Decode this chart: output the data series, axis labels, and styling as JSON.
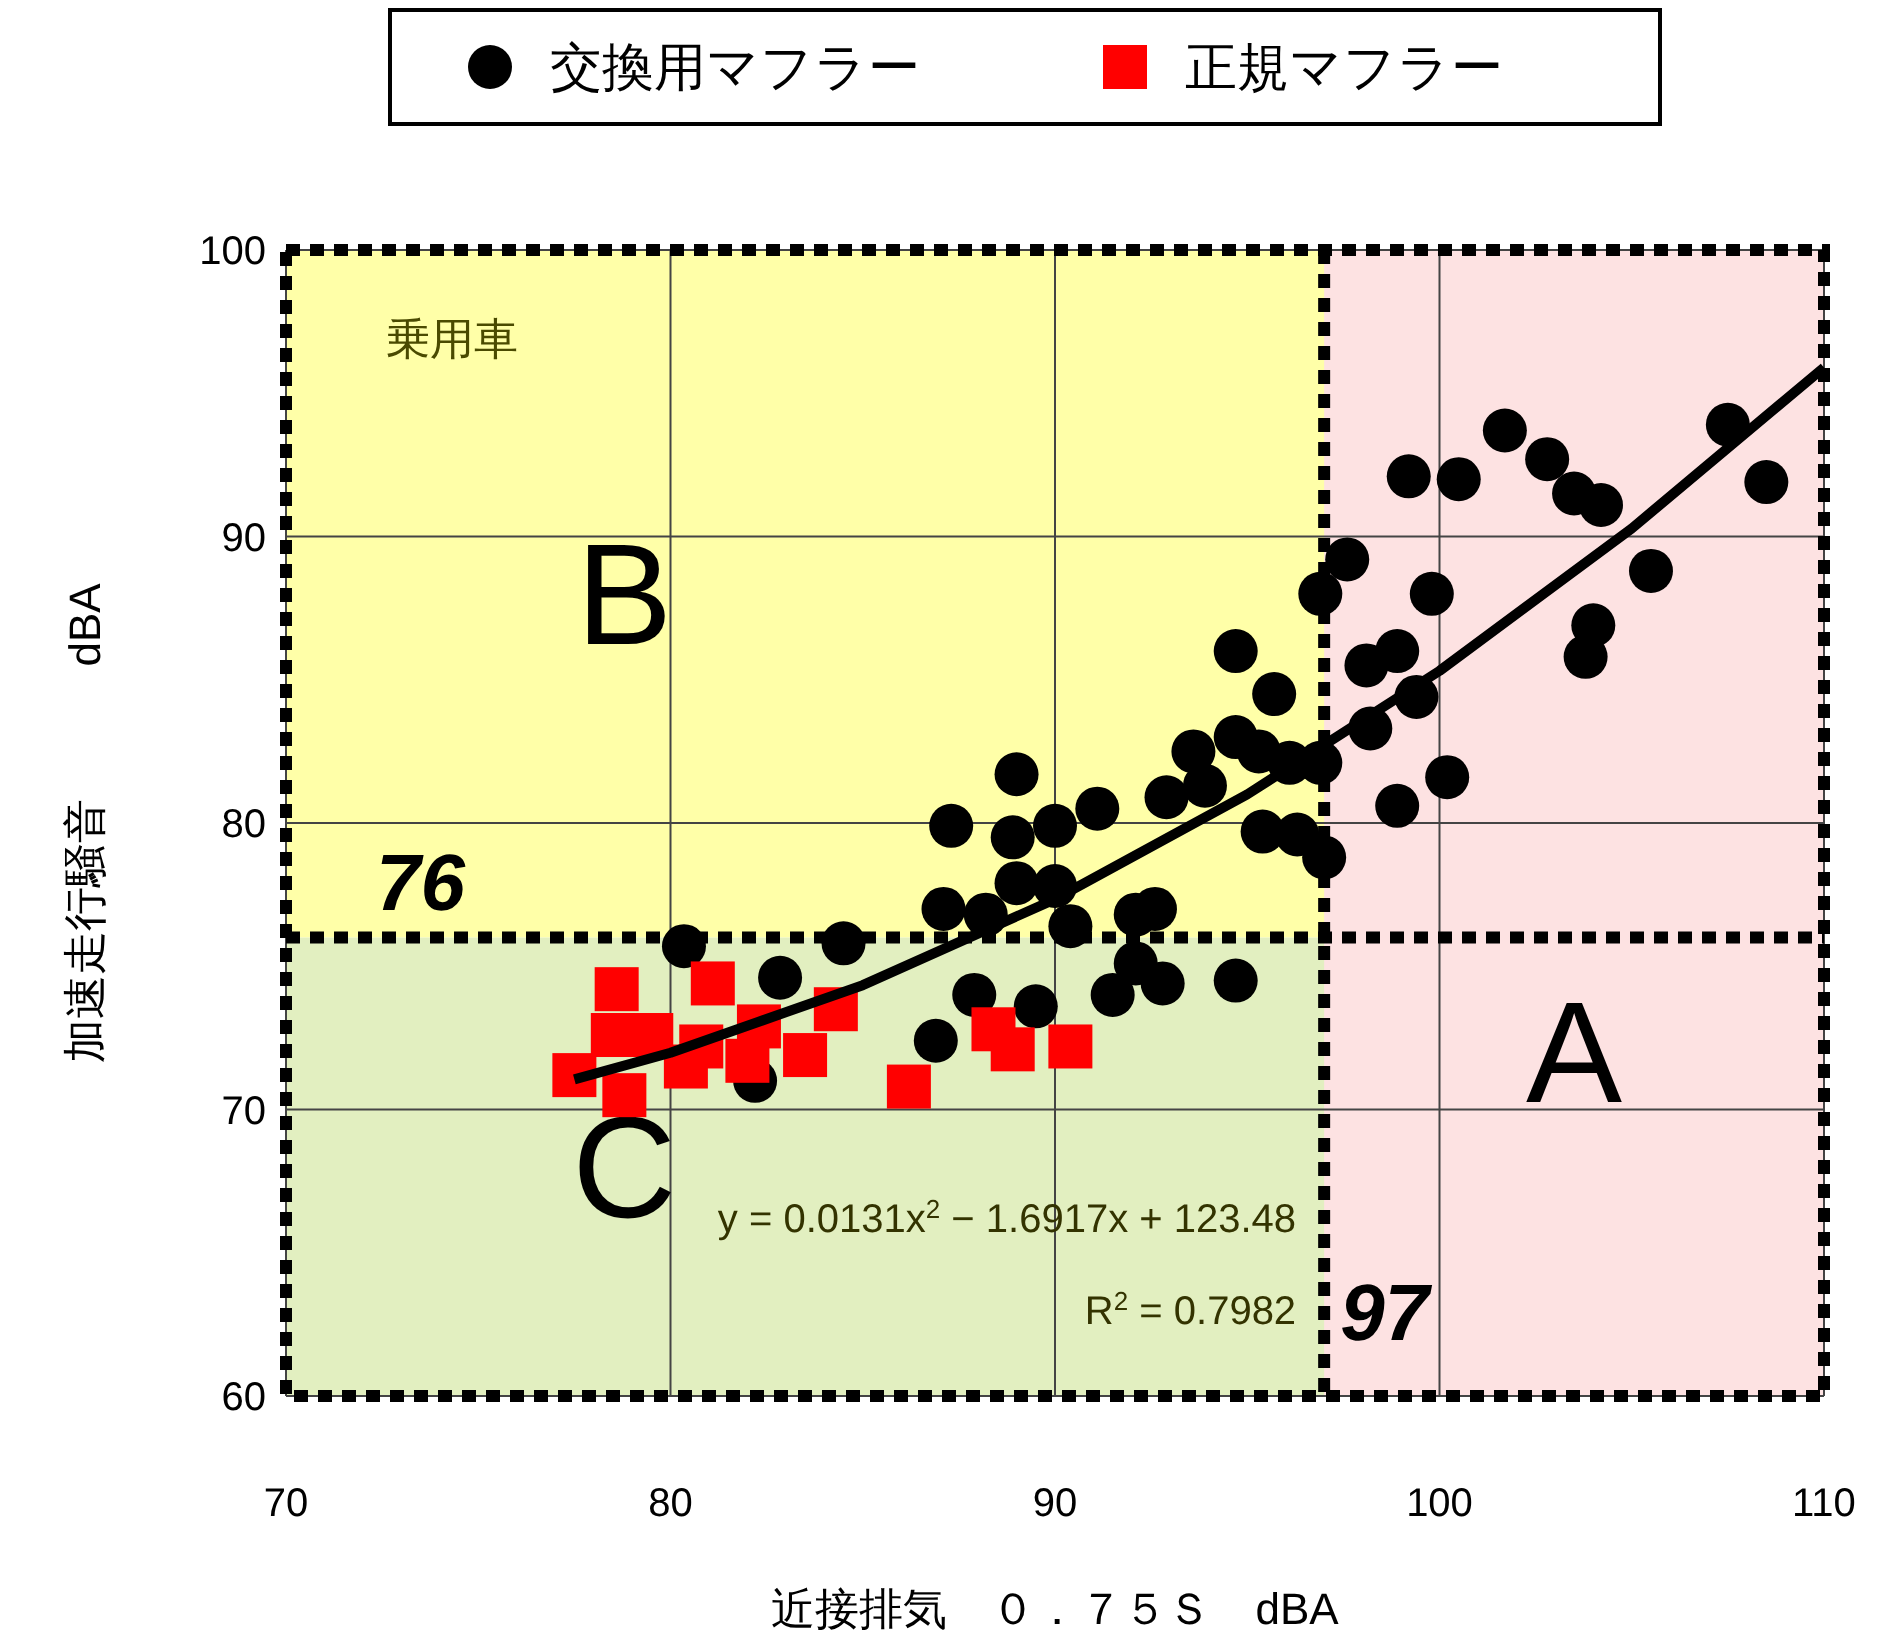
{
  "chart_data": {
    "type": "scatter",
    "xlabel": "近接排気　０．７５Ｓ　dBA",
    "ylabel": "加速走行騒音　　　dBA",
    "xlim": [
      70,
      110
    ],
    "ylim": [
      60,
      100
    ],
    "xticks": [
      70,
      80,
      90,
      100,
      110
    ],
    "yticks": [
      60,
      70,
      80,
      90,
      100
    ],
    "grid": true,
    "legend": "top",
    "series": [
      {
        "name": "交換用マフラー",
        "color": "#000000",
        "marker": "circle",
        "x": [
          80.35,
          84.5,
          82.85,
          82.2,
          86.9,
          87.9,
          89.5,
          91.5,
          92.8,
          92.1,
          94.7,
          87.1,
          88.2,
          89.0,
          90.0,
          90.4,
          92.1,
          92.6,
          87.3,
          88.9,
          90.0,
          91.1,
          89.0,
          92.9,
          93.6,
          93.9,
          94.7,
          95.3,
          94.7,
          95.7,
          96.1,
          95.4,
          96.3,
          96.9,
          97.0,
          99.2,
          100.5,
          101.7,
          102.8,
          103.5,
          104.2,
          107.5,
          108.5,
          97.6,
          99.8,
          105.5,
          104.0,
          103.8,
          98.1,
          98.9,
          99.4,
          98.2,
          96.9,
          100.2,
          98.9
        ],
        "values": [
          75.7,
          75.8,
          74.6,
          71.0,
          72.4,
          74.0,
          73.6,
          74.0,
          74.4,
          75.1,
          74.5,
          77.0,
          76.8,
          77.9,
          77.8,
          76.4,
          76.8,
          77.0,
          79.9,
          79.5,
          79.9,
          80.5,
          81.7,
          80.9,
          82.5,
          81.3,
          83.0,
          82.5,
          86.0,
          84.5,
          82.1,
          79.7,
          79.6,
          88.0,
          78.8,
          92.1,
          92.0,
          93.7,
          92.7,
          91.5,
          91.1,
          93.9,
          91.9,
          89.2,
          88.0,
          88.8,
          86.9,
          85.8,
          85.5,
          86.0,
          84.4,
          83.3,
          82.1,
          81.6,
          80.6
        ]
      },
      {
        "name": "正規マフラー",
        "color": "#ff0000",
        "marker": "square",
        "x": [
          78.6,
          81.1,
          77.5,
          78.5,
          78.8,
          79.5,
          80.4,
          80.8,
          82.0,
          82.3,
          83.5,
          84.3,
          86.2,
          88.4,
          88.9,
          90.4
        ],
        "values": [
          74.2,
          74.4,
          71.2,
          72.6,
          70.5,
          72.6,
          71.5,
          72.2,
          71.7,
          72.9,
          71.9,
          73.5,
          70.8,
          72.8,
          72.1,
          72.2
        ]
      },
      {
        "type": "line",
        "color": "#000000",
        "x": [
          77.5,
          80,
          85,
          90,
          95,
          100,
          105,
          110
        ],
        "values": [
          71.05,
          71.98,
          74.34,
          77.34,
          81.0,
          85.31,
          90.28,
          95.9
        ]
      }
    ],
    "bands": [
      {
        "axis": "y",
        "from": 76,
        "to": 100,
        "label": "B",
        "color": "#ffffa8"
      },
      {
        "axis": "y",
        "from": 60,
        "to": 76,
        "label": "C",
        "color": "#e2efc0"
      },
      {
        "axis": "x",
        "from": 97,
        "to": 110,
        "label": "A",
        "color": "#fde2e2"
      }
    ],
    "ref_lines": [
      {
        "axis": "y",
        "value": 76,
        "label": "76",
        "line_style": "dashed"
      },
      {
        "axis": "x",
        "value": 97,
        "label": "97",
        "line_style": "dashed"
      }
    ],
    "annotations": [
      "乗用車",
      "y = 0.0131x$^{2}$ − 1.6917x + 123.48",
      "R$^{2}$ = 0.7982"
    ]
  }
}
